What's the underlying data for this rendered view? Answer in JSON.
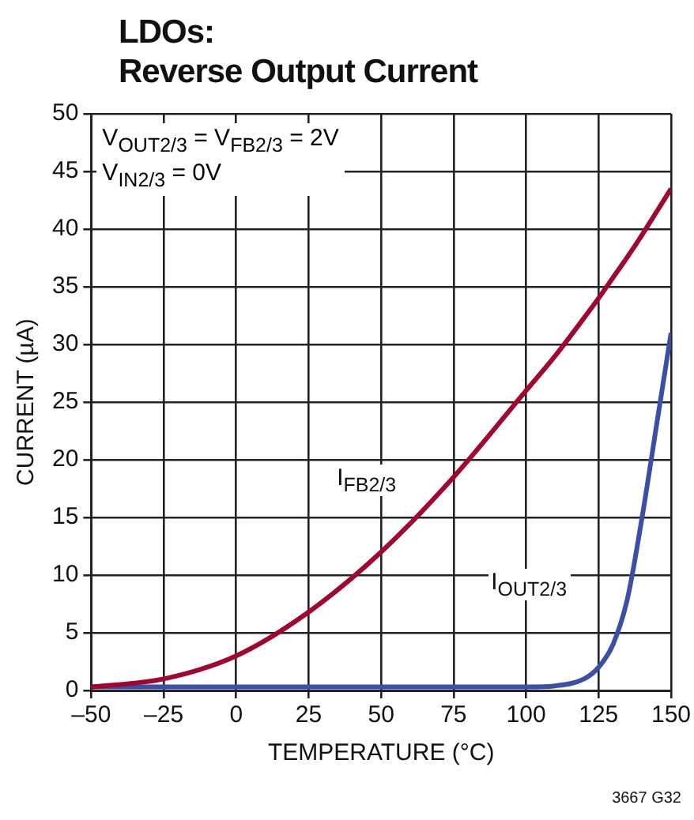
{
  "chart_data": {
    "type": "line",
    "title": "LDOs:\nReverse Output Current",
    "xlabel": "TEMPERATURE (°C)",
    "ylabel": "CURRENT (µA)",
    "annotations": [
      "V$_{OUT2/3}$ = V$_{FB2/3}$ = 2V",
      "V$_{IN2/3}$ = 0V",
      "3667 G32"
    ],
    "x": [
      -50,
      -25,
      0,
      25,
      50,
      75,
      100,
      110,
      120,
      125,
      130,
      135,
      140,
      145,
      150
    ],
    "series": [
      {
        "name": "I$_{FB2/3}$",
        "color": "#a0062e",
        "values": [
          0.3,
          1,
          3,
          6.8,
          12,
          18.5,
          26,
          29,
          32.3,
          34,
          35.8,
          37.6,
          39.5,
          41.5,
          43.5
        ]
      },
      {
        "name": "I$_{OUT2/3}$",
        "color": "#3a4fa8",
        "values": [
          0.3,
          0.3,
          0.3,
          0.3,
          0.3,
          0.3,
          0.3,
          0.4,
          1,
          2,
          4,
          8,
          15,
          23,
          31
        ]
      }
    ],
    "xlim": [
      -50,
      150
    ],
    "xticks": [
      {
        "value": -50,
        "label": "–50"
      },
      {
        "value": -25,
        "label": "–25"
      },
      0,
      25,
      50,
      75,
      100,
      125,
      150
    ],
    "ylim": [
      0,
      50
    ],
    "yticks": [
      0,
      5,
      10,
      15,
      20,
      25,
      30,
      35,
      40,
      45,
      50
    ],
    "grid": true,
    "legend": false,
    "marker": "none",
    "line_style": "solid"
  }
}
